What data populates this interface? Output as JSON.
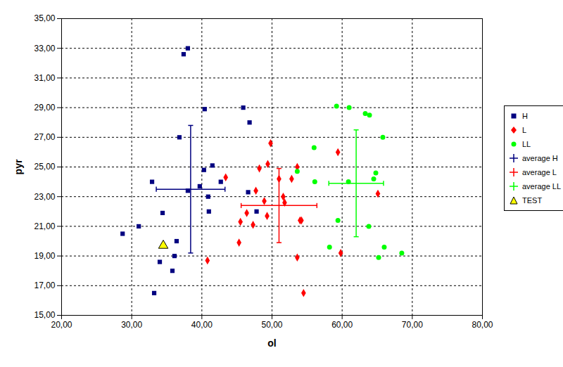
{
  "chart_data": {
    "type": "scatter",
    "x_label": "ol",
    "y_label": "pyr",
    "xlim": [
      20,
      80
    ],
    "ylim": [
      15,
      35
    ],
    "xticks": [
      {
        "value": 20,
        "label": "20,00"
      },
      {
        "value": 30,
        "label": "30,00"
      },
      {
        "value": 40,
        "label": "40,00"
      },
      {
        "value": 50,
        "label": "50,00"
      },
      {
        "value": 60,
        "label": "60,00"
      },
      {
        "value": 70,
        "label": "70,00"
      },
      {
        "value": 80,
        "label": "80,00"
      }
    ],
    "yticks": [
      {
        "value": 15,
        "label": "15,00"
      },
      {
        "value": 17,
        "label": "17,00"
      },
      {
        "value": 19,
        "label": "19,00"
      },
      {
        "value": 21,
        "label": "21,00"
      },
      {
        "value": 23,
        "label": "23,00"
      },
      {
        "value": 25,
        "label": "25,00"
      },
      {
        "value": 27,
        "label": "27,00"
      },
      {
        "value": 29,
        "label": "29,00"
      },
      {
        "value": 31,
        "label": "31,00"
      },
      {
        "value": 33,
        "label": "33,00"
      },
      {
        "value": 35,
        "label": "35,00"
      }
    ],
    "grid": true,
    "legend": "right",
    "series": [
      {
        "name": "H",
        "color": "#000080",
        "marker": "square",
        "x": [
          38.0,
          37.4,
          40.4,
          45.9,
          46.8,
          36.8,
          41.5,
          40.3,
          32.9,
          42.7,
          39.7,
          38.0,
          46.6,
          40.9,
          34.4,
          41.0,
          47.8,
          31.0,
          28.7,
          36.4,
          34.5,
          36.1,
          34.0,
          35.8,
          33.2
        ],
        "y": [
          33.0,
          32.6,
          28.9,
          29.0,
          28.0,
          27.0,
          25.1,
          24.8,
          24.0,
          24.0,
          23.7,
          23.4,
          23.3,
          23.0,
          21.9,
          22.0,
          22.0,
          21.0,
          20.5,
          20.0,
          19.7,
          19.0,
          18.6,
          18.0,
          16.5
        ]
      },
      {
        "name": "L",
        "color": "#ff0000",
        "marker": "diamond",
        "x": [
          49.8,
          59.4,
          49.4,
          48.2,
          53.6,
          43.4,
          51.0,
          52.8,
          47.7,
          51.6,
          51.8,
          48.9,
          46.4,
          49.3,
          45.5,
          47.3,
          54.0,
          54.2,
          65.1,
          45.3,
          53.6,
          59.8,
          40.8,
          54.5
        ],
        "y": [
          26.6,
          26.0,
          25.2,
          24.9,
          25.0,
          24.3,
          24.2,
          24.2,
          23.4,
          23.0,
          22.6,
          22.7,
          21.9,
          21.7,
          21.3,
          21.1,
          21.4,
          21.4,
          23.2,
          19.9,
          18.9,
          19.2,
          18.7,
          16.5
        ]
      },
      {
        "name": "LL",
        "color": "#00ff00",
        "marker": "circle",
        "x": [
          59.2,
          61.0,
          63.3,
          63.9,
          65.8,
          56.0,
          53.6,
          64.8,
          64.5,
          56.1,
          60.9,
          59.4,
          63.8,
          58.2,
          66.0,
          65.2,
          68.5
        ],
        "y": [
          29.1,
          29.0,
          28.6,
          28.5,
          27.0,
          26.3,
          24.7,
          24.6,
          24.2,
          24.0,
          24.0,
          21.4,
          21.0,
          19.6,
          19.6,
          18.9,
          19.2
        ]
      },
      {
        "name": "average H",
        "color": "#000080",
        "type": "errorbar",
        "marker": "plus",
        "x": [
          38.4
        ],
        "y": [
          23.5
        ],
        "x_error": [
          4.9
        ],
        "y_error": [
          4.3
        ]
      },
      {
        "name": "average L",
        "color": "#ff0000",
        "type": "errorbar",
        "marker": "plus",
        "x": [
          51.0
        ],
        "y": [
          22.4
        ],
        "x_error": [
          5.4
        ],
        "y_error": [
          2.5
        ]
      },
      {
        "name": "average LL",
        "color": "#00ff00",
        "type": "errorbar",
        "marker": "plus",
        "x": [
          62.0
        ],
        "y": [
          23.9
        ],
        "x_error": [
          3.9
        ],
        "y_error": [
          3.6
        ]
      },
      {
        "name": "TEST",
        "color": "#ffff00",
        "marker": "triangle",
        "x": [
          34.5
        ],
        "y": [
          19.7
        ]
      }
    ]
  }
}
